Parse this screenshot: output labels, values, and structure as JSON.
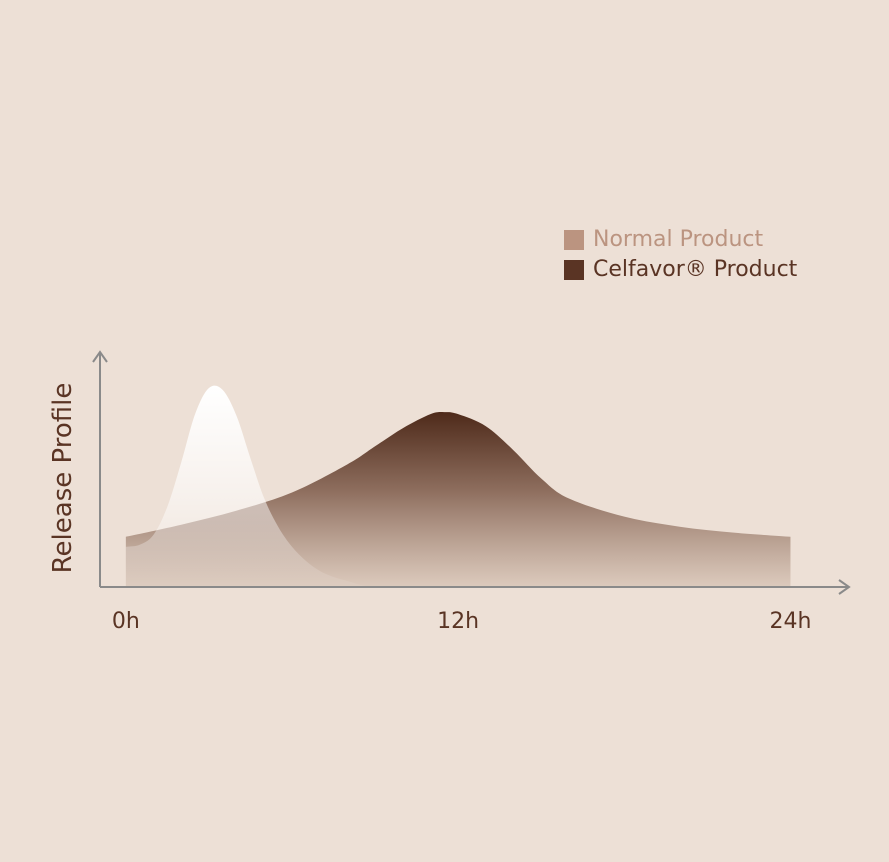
{
  "colors": {
    "background": "#ede0d6",
    "axis": "#8a8a8a",
    "normal": "#bb9480",
    "celfavor": "#5a3424",
    "label_text": "#5a3424"
  },
  "legend": {
    "items": [
      {
        "label": "Normal Product",
        "color": "#bb9480"
      },
      {
        "label": "Celfavor® Product",
        "color": "#5a3424"
      }
    ],
    "position": "top-right"
  },
  "chart_data": {
    "type": "area",
    "ylabel": "Release Profile",
    "xlabel": "",
    "x_ticks": [
      {
        "label": "0h",
        "value": 0
      },
      {
        "label": "12h",
        "value": 12
      },
      {
        "label": "24h",
        "value": 24
      }
    ],
    "xlim": [
      -0.5,
      25.5
    ],
    "ylim": [
      0,
      1
    ],
    "grid": false,
    "series": [
      {
        "name": "Normal Product",
        "color": "#ffffff",
        "x": [
          0,
          0.5,
          1,
          1.5,
          2,
          2.5,
          3,
          3.5,
          4,
          4.5,
          5,
          5.5,
          6,
          6.5,
          7,
          7.5,
          8,
          8.5,
          9
        ],
        "y": [
          0.2,
          0.21,
          0.26,
          0.4,
          0.62,
          0.86,
          0.99,
          0.98,
          0.85,
          0.64,
          0.44,
          0.3,
          0.2,
          0.13,
          0.08,
          0.05,
          0.03,
          0.01,
          0
        ]
      },
      {
        "name": "Celfavor® Product",
        "color": "#5a3424",
        "x": [
          0,
          2,
          4,
          6,
          8,
          9,
          10,
          11,
          11.5,
          12,
          13,
          14,
          15,
          16,
          18,
          20,
          22,
          24
        ],
        "y": [
          0.25,
          0.31,
          0.38,
          0.47,
          0.61,
          0.7,
          0.79,
          0.86,
          0.87,
          0.86,
          0.8,
          0.68,
          0.54,
          0.44,
          0.35,
          0.3,
          0.27,
          0.25
        ]
      }
    ]
  }
}
